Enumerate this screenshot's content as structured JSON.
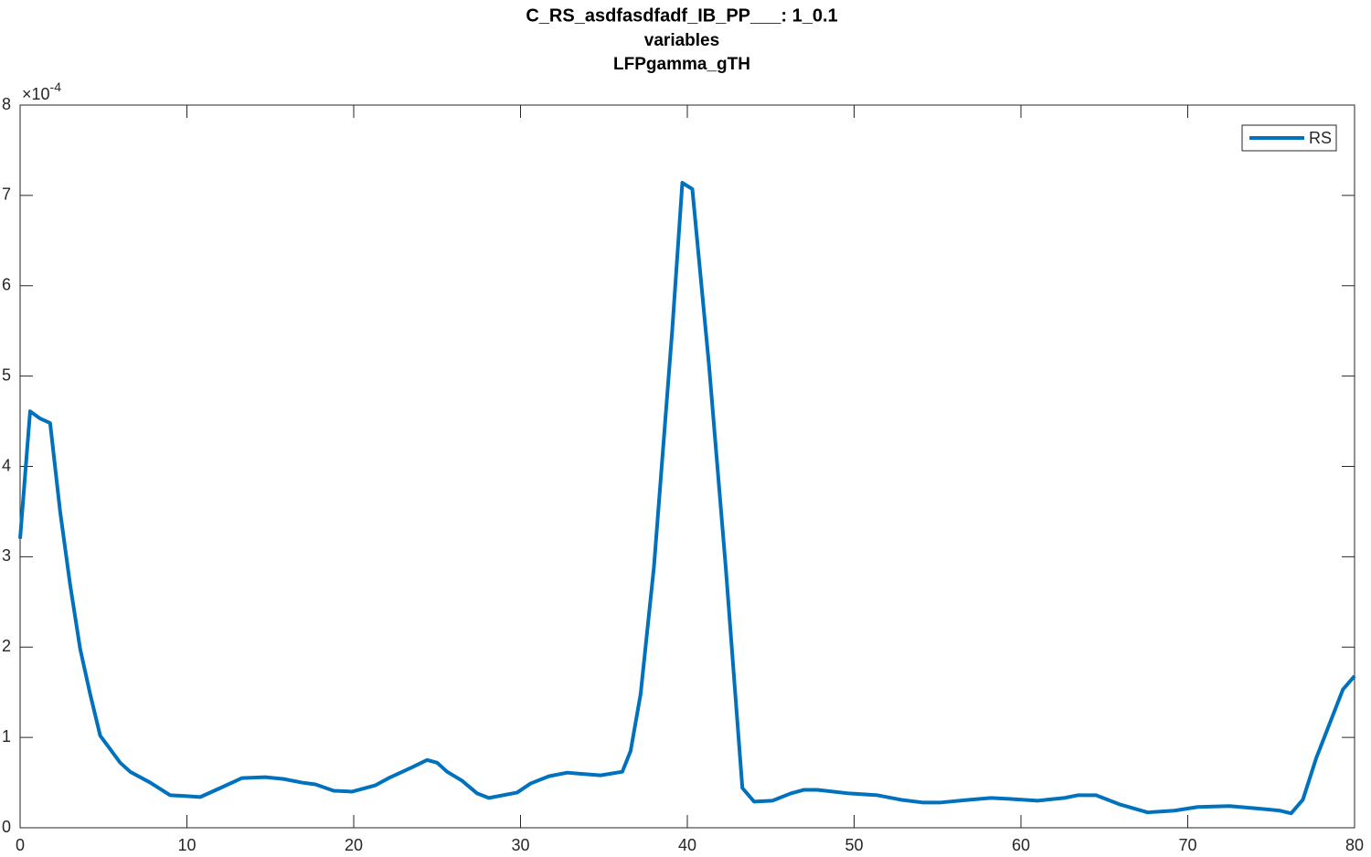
{
  "chart_data": {
    "type": "line",
    "title": "C_RS_asdfasdfadf_IB_PP___: 1_0.1",
    "subtitle": [
      "variables",
      "LFPgamma_gTH"
    ],
    "y_multiplier": {
      "base": "×10",
      "exponent": "-4"
    },
    "x": [
      0,
      0.6,
      1.2,
      1.8,
      2.4,
      3.0,
      3.6,
      4.2,
      4.8,
      5.4,
      6.0,
      6.6,
      7.8,
      9.0,
      10,
      10.8,
      12,
      13.3,
      14.7,
      15.8,
      16.9,
      17.7,
      18.8,
      19.9,
      21.3,
      22.1,
      23.5,
      24.4,
      25,
      25.6,
      26.5,
      27.4,
      28.1,
      29.8,
      30.6,
      31.7,
      32.8,
      34.1,
      34.8,
      36.1,
      36.6,
      37.2,
      38,
      39.1,
      39.7,
      40.3,
      41.3,
      42.3,
      43.3,
      44,
      45.1,
      46.2,
      47,
      47.8,
      49.7,
      51.4,
      52.8,
      54.1,
      55.2,
      56.9,
      58.2,
      59.3,
      61,
      62.6,
      63.4,
      64.5,
      65.9,
      67.6,
      69.2,
      70.6,
      72.5,
      74.4,
      75.5,
      76.2,
      76.9,
      77.7,
      79.3,
      80
    ],
    "series": [
      {
        "name": "RS",
        "color": "#0072bd",
        "values": [
          3.2,
          4.61,
          4.53,
          4.48,
          3.5,
          2.69,
          1.98,
          1.48,
          1.02,
          0.87,
          0.72,
          0.62,
          0.5,
          0.36,
          0.35,
          0.34,
          0.44,
          0.55,
          0.56,
          0.54,
          0.5,
          0.48,
          0.41,
          0.4,
          0.47,
          0.55,
          0.67,
          0.75,
          0.72,
          0.62,
          0.52,
          0.38,
          0.33,
          0.39,
          0.49,
          0.57,
          0.61,
          0.59,
          0.58,
          0.62,
          0.85,
          1.48,
          2.89,
          5.52,
          7.14,
          7.07,
          5.12,
          2.89,
          0.44,
          0.29,
          0.3,
          0.38,
          0.42,
          0.42,
          0.38,
          0.36,
          0.31,
          0.28,
          0.28,
          0.31,
          0.33,
          0.32,
          0.3,
          0.33,
          0.36,
          0.36,
          0.26,
          0.17,
          0.19,
          0.23,
          0.24,
          0.21,
          0.19,
          0.16,
          0.31,
          0.77,
          1.53,
          1.68
        ]
      }
    ],
    "xlim": [
      0,
      80
    ],
    "xticks": [
      0,
      10,
      20,
      30,
      40,
      50,
      60,
      70,
      80
    ],
    "ylim": [
      0,
      8
    ],
    "yticks": [
      0,
      1,
      2,
      3,
      4,
      5,
      6,
      7,
      8
    ],
    "legend": "upper right",
    "grid": false
  }
}
